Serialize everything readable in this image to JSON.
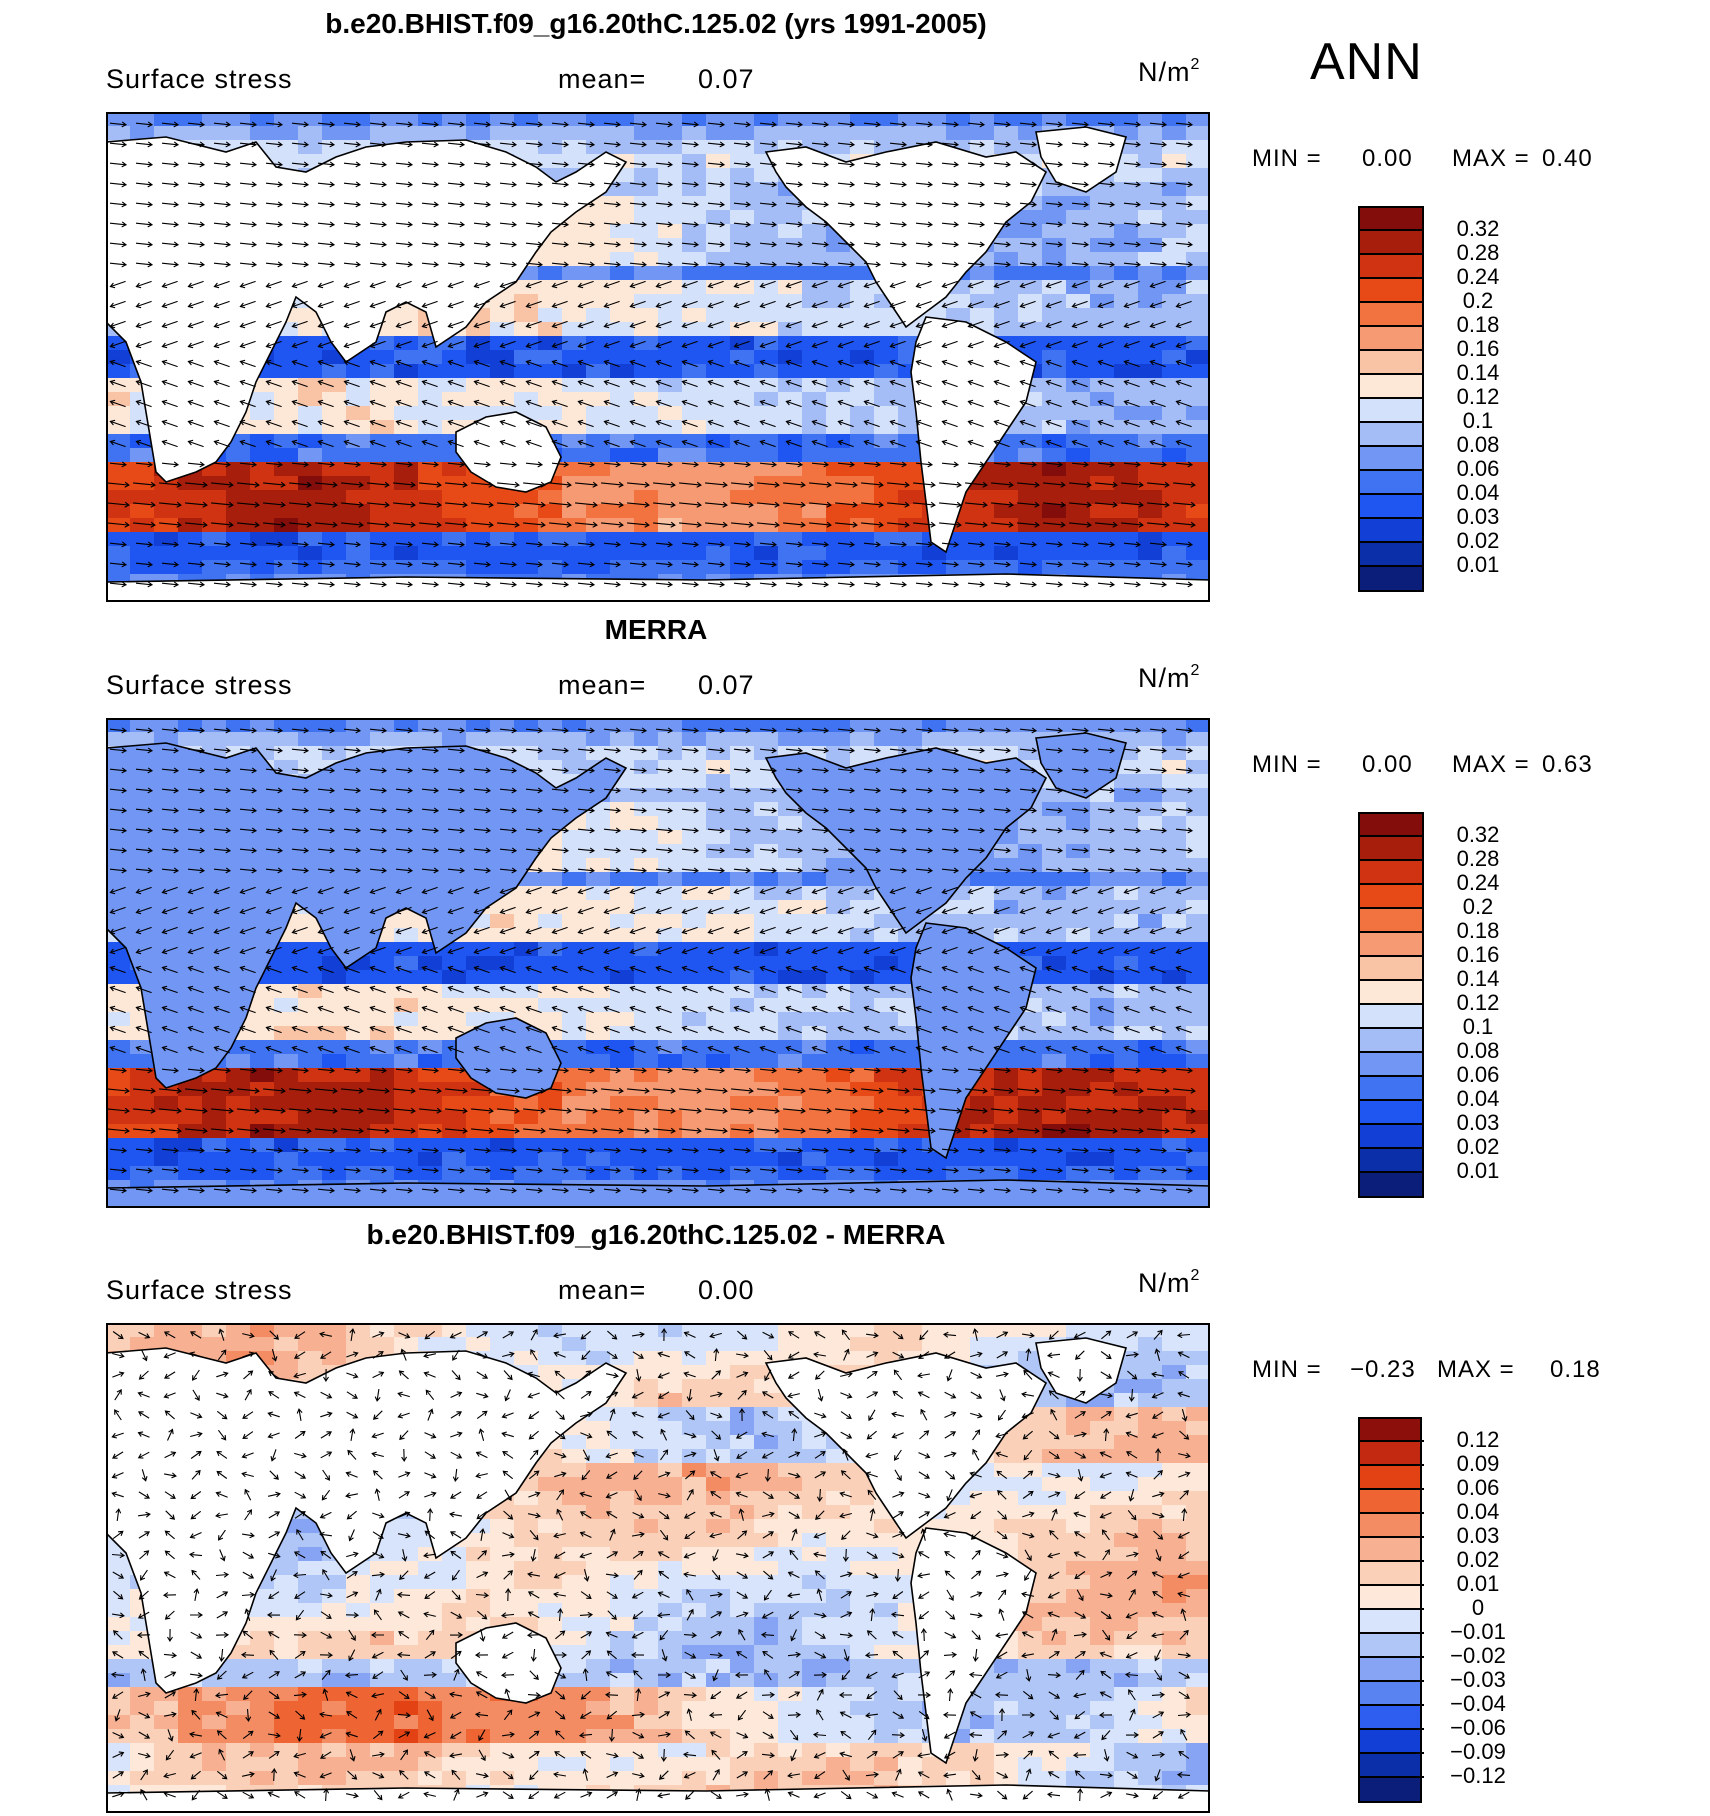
{
  "season": "ANN",
  "colors": {
    "full": [
      "#0a1e7a",
      "#0b2fa8",
      "#1240d6",
      "#1f55f0",
      "#3f73f2",
      "#7196f4",
      "#a5bdf6",
      "#d4e1fb",
      "#fde7d6",
      "#f9c3a6",
      "#f69a74",
      "#f2733f",
      "#e84a17",
      "#cf3311",
      "#a81e0d",
      "#830d0b"
    ],
    "diff": [
      "#0a1e7a",
      "#0b2fa8",
      "#1240d6",
      "#2d5ef0",
      "#5a83f2",
      "#86a4f3",
      "#b0c6f7",
      "#d8e4fb",
      "#fde8d9",
      "#fad0b8",
      "#f7b092",
      "#f38c63",
      "#ef6433",
      "#e34214",
      "#c32910",
      "#8d0f0b"
    ]
  },
  "panels": [
    {
      "title": "b.e20.BHIST.f09_g16.20thC.125.02 (yrs 1991-2005)",
      "variable": "Surface stress",
      "mean_label": "mean=",
      "mean_value": "0.07",
      "units": "N/m",
      "units_sup": "2",
      "min_label": "MIN =",
      "min_value": "0.00",
      "max_label": "MAX =",
      "max_value": "0.40",
      "palette": "full",
      "levels": [
        "0.32",
        "0.28",
        "0.24",
        "0.2",
        "0.18",
        "0.16",
        "0.14",
        "0.12",
        "0.1",
        "0.08",
        "0.06",
        "0.04",
        "0.03",
        "0.02",
        "0.01"
      ],
      "land_shaded": false
    },
    {
      "title": "MERRA",
      "variable": "Surface stress",
      "mean_label": "mean=",
      "mean_value": "0.07",
      "units": "N/m",
      "units_sup": "2",
      "min_label": "MIN =",
      "min_value": "0.00",
      "max_label": "MAX =",
      "max_value": "0.63",
      "palette": "full",
      "levels": [
        "0.32",
        "0.28",
        "0.24",
        "0.2",
        "0.18",
        "0.16",
        "0.14",
        "0.12",
        "0.1",
        "0.08",
        "0.06",
        "0.04",
        "0.03",
        "0.02",
        "0.01"
      ],
      "land_shaded": true
    },
    {
      "title": "b.e20.BHIST.f09_g16.20thC.125.02 - MERRA",
      "variable": "Surface stress",
      "mean_label": "mean=",
      "mean_value": "0.00",
      "units": "N/m",
      "units_sup": "2",
      "min_label": "MIN =",
      "min_value": "−0.23",
      "max_label": "MAX =",
      "max_value": "0.18",
      "palette": "diff",
      "levels": [
        "0.12",
        "0.09",
        "0.06",
        "0.04",
        "0.03",
        "0.02",
        "0.01",
        "0",
        "−0.01",
        "−0.02",
        "−0.03",
        "−0.04",
        "−0.06",
        "−0.09",
        "−0.12"
      ],
      "land_shaded": false
    }
  ]
}
